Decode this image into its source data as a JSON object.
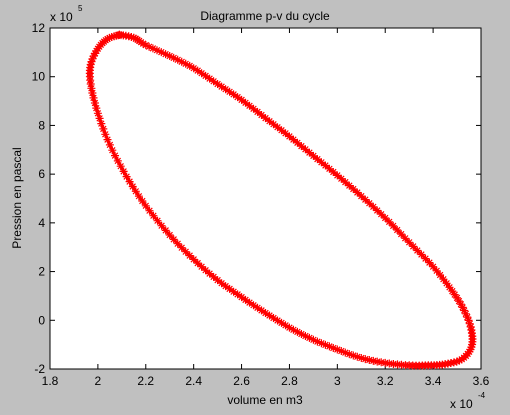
{
  "chart_data": {
    "type": "line",
    "title": "Diagramme p-v du cycle",
    "xlabel": "volume en m3",
    "ylabel": "Pression en pascal",
    "x_multiplier": {
      "base": "x 10",
      "power": "-4"
    },
    "y_multiplier": {
      "base": "x 10",
      "power": "5"
    },
    "xlim": [
      0.00018,
      0.00036
    ],
    "ylim": [
      -200000.0,
      1200000.0
    ],
    "x_ticks": [
      "1.8",
      "2",
      "2.2",
      "2.4",
      "2.6",
      "2.8",
      "3",
      "3.2",
      "3.4",
      "3.6"
    ],
    "y_ticks": [
      "-2",
      "0",
      "2",
      "4",
      "6",
      "8",
      "10",
      "12"
    ],
    "grid": false,
    "series": [
      {
        "color": "#ff0000",
        "marker": "star",
        "points": [
          [
            0.000209,
            1172000.0
          ],
          [
            0.000215,
            1160000.0
          ],
          [
            0.00022,
            1130000.0
          ],
          [
            0.00023,
            1085000.0
          ],
          [
            0.00024,
            1035000.0
          ],
          [
            0.00025,
            970000.0
          ],
          [
            0.00026,
            905000.0
          ],
          [
            0.00027,
            830000.0
          ],
          [
            0.00028,
            755000.0
          ],
          [
            0.00029,
            675000.0
          ],
          [
            0.0003,
            595000.0
          ],
          [
            0.00031,
            510000.0
          ],
          [
            0.00032,
            420000.0
          ],
          [
            0.00033,
            320000.0
          ],
          [
            0.00034,
            220000.0
          ],
          [
            0.000348,
            120000.0
          ],
          [
            0.000353,
            40000.0
          ],
          [
            0.000356,
            -40000.0
          ],
          [
            0.000356,
            -110000.0
          ],
          [
            0.000352,
            -160000.0
          ],
          [
            0.000345,
            -180000.0
          ],
          [
            0.000338,
            -185000.0
          ],
          [
            0.00033,
            -185000.0
          ],
          [
            0.00032,
            -175000.0
          ],
          [
            0.00031,
            -155000.0
          ],
          [
            0.0003,
            -120000.0
          ],
          [
            0.00029,
            -80000.0
          ],
          [
            0.00028,
            -30000.0
          ],
          [
            0.00027,
            30000.0
          ],
          [
            0.00026,
            95000.0
          ],
          [
            0.00025,
            165000.0
          ],
          [
            0.00024,
            250000.0
          ],
          [
            0.00023,
            350000.0
          ],
          [
            0.00022,
            470000.0
          ],
          [
            0.000212,
            590000.0
          ],
          [
            0.000205,
            720000.0
          ],
          [
            0.0002,
            850000.0
          ],
          [
            0.000197,
            970000.0
          ],
          [
            0.000197,
            1050000.0
          ],
          [
            0.0002,
            1115000.0
          ],
          [
            0.000204,
            1155000.0
          ],
          [
            0.000209,
            1172000.0
          ]
        ]
      }
    ]
  }
}
